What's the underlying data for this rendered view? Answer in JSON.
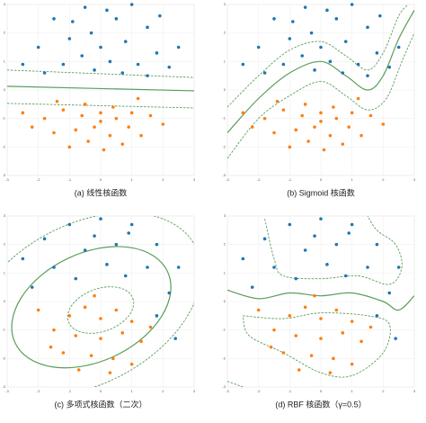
{
  "chart_data": [
    {
      "type": "scatter",
      "title": "(a) 线性核函数",
      "xlim": [
        -3,
        3
      ],
      "ylim": [
        -3,
        3
      ],
      "xticks": [
        -3,
        -2,
        -1,
        0,
        1,
        2,
        3
      ],
      "yticks": [
        -3,
        -2,
        -1,
        0,
        1,
        2,
        3
      ],
      "grid": true,
      "series": [
        {
          "color": "#1f77b4",
          "x": [
            -1.5,
            -0.5,
            1,
            1.5,
            -0.3,
            0.5,
            -2,
            -1,
            0,
            0.8,
            1.8,
            -2.5,
            -1.2,
            -0.6,
            0.3,
            1.2,
            2.2,
            -1.8,
            0.7,
            -0.2,
            1.5,
            2.5,
            -0.9,
            0.2,
            1.9
          ],
          "values": [
            2.5,
            2.9,
            3,
            2.2,
            2,
            2.5,
            1.5,
            1.8,
            1.5,
            1.7,
            1.3,
            0.9,
            0.9,
            1.2,
            1,
            0.9,
            0.8,
            0.6,
            0.6,
            0.7,
            0.5,
            1.5,
            2.4,
            2.8,
            2.6
          ]
        },
        {
          "color": "#ff7f0e",
          "x": [
            -2.5,
            -1.8,
            -1.2,
            -0.6,
            0,
            0.5,
            1,
            1.6,
            -1.5,
            -0.8,
            -0.2,
            0.3,
            0.9,
            1.3,
            -1,
            -0.4,
            0.1,
            0.7,
            -2.2,
            2,
            -0.5,
            0.4,
            -1.4,
            1.2,
            0
          ],
          "values": [
            -0.8,
            -1,
            -0.7,
            -0.9,
            -0.8,
            -1,
            -0.8,
            -0.9,
            -1.5,
            -1.4,
            -1.3,
            -1.6,
            -1.3,
            -1.6,
            -2,
            -1.8,
            -2.1,
            -1.9,
            -1.3,
            -1.2,
            -0.5,
            -0.6,
            -0.4,
            -0.3,
            -1.1
          ]
        }
      ],
      "curves": [
        {
          "type": "line",
          "color": "#5a9e5a",
          "style": "solid",
          "x": [
            -3,
            3
          ],
          "values": [
            0.13,
            -0.03
          ]
        },
        {
          "type": "line",
          "color": "#5a9e5a",
          "style": "dashed",
          "x": [
            -3,
            3
          ],
          "values": [
            0.7,
            0.44
          ]
        },
        {
          "type": "line",
          "color": "#5a9e5a",
          "style": "dashed",
          "x": [
            -3,
            3
          ],
          "values": [
            -0.47,
            -0.63
          ]
        }
      ]
    },
    {
      "type": "scatter",
      "title": "(b) Sigmoid 核函数",
      "xlim": [
        -3,
        3
      ],
      "ylim": [
        -3,
        3
      ],
      "xticks": [
        -3,
        -2,
        -1,
        0,
        1,
        2,
        3
      ],
      "yticks": [
        -3,
        -2,
        -1,
        0,
        1,
        2,
        3
      ],
      "grid": true,
      "series": [
        {
          "color": "#1f77b4",
          "x": [
            -1.5,
            -0.5,
            1,
            1.5,
            -0.3,
            0.5,
            -2,
            -1,
            0,
            0.8,
            1.8,
            -2.5,
            -1.2,
            -0.6,
            0.3,
            1.2,
            2.2,
            -1.8,
            0.7,
            -0.2,
            1.5,
            2.5,
            -0.9,
            0.2,
            1.9
          ],
          "values": [
            2.5,
            2.9,
            3,
            2.2,
            2,
            2.5,
            1.5,
            1.8,
            1.5,
            1.7,
            1.3,
            0.9,
            0.9,
            1.2,
            1,
            0.9,
            0.8,
            0.6,
            0.6,
            0.7,
            0.5,
            1.5,
            2.4,
            2.8,
            2.6
          ]
        },
        {
          "color": "#ff7f0e",
          "x": [
            -2.5,
            -1.8,
            -1.2,
            -0.6,
            0,
            0.5,
            1,
            1.6,
            -1.5,
            -0.8,
            -0.2,
            0.3,
            0.9,
            1.3,
            -1,
            -0.4,
            0.1,
            0.7,
            -2.2,
            2,
            -0.5,
            0.4,
            -1.4,
            1.2,
            0
          ],
          "values": [
            -0.8,
            -1,
            -0.7,
            -0.9,
            -0.8,
            -1,
            -0.8,
            -0.9,
            -1.5,
            -1.4,
            -1.3,
            -1.6,
            -1.3,
            -1.6,
            -2,
            -1.8,
            -2.1,
            -1.9,
            -1.3,
            -1.2,
            -0.5,
            -0.6,
            -0.4,
            -0.3,
            -1.1
          ]
        }
      ],
      "curves": [
        {
          "type": "line",
          "color": "#5a9e5a",
          "style": "solid",
          "x": [
            -3,
            -2,
            -1,
            0,
            0.8,
            1.5,
            2,
            2.5,
            3
          ],
          "values": [
            -1.5,
            -0.3,
            0.6,
            1,
            0.5,
            0,
            0.5,
            1.8,
            2.8
          ]
        },
        {
          "type": "line",
          "color": "#5a9e5a",
          "style": "dashed",
          "x": [
            -3,
            -2,
            -1,
            0,
            0.8,
            1.5,
            2,
            2.5,
            2.8
          ],
          "values": [
            -0.6,
            0.5,
            1.4,
            1.7,
            1.2,
            0.7,
            1.3,
            2.6,
            3
          ]
        },
        {
          "type": "line",
          "color": "#5a9e5a",
          "style": "dashed",
          "x": [
            -3,
            -2,
            -1,
            0,
            0.8,
            1.5,
            2.1,
            2.6,
            3
          ],
          "values": [
            -2.4,
            -1,
            -0.2,
            0.3,
            -0.2,
            -0.7,
            -0.3,
            1,
            2
          ]
        }
      ]
    },
    {
      "type": "scatter",
      "title": "(c) 多项式核函数（二次）",
      "xlim": [
        -3,
        3
      ],
      "ylim": [
        -3,
        3
      ],
      "xticks": [
        -3,
        -2,
        -1,
        0,
        1,
        2,
        3
      ],
      "yticks": [
        -3,
        -2,
        -1,
        0,
        1,
        2,
        3
      ],
      "grid": true,
      "series": [
        {
          "color": "#1f77b4",
          "x": [
            -2.5,
            -1.8,
            -1,
            0,
            1,
            1.8,
            2.5,
            -2.2,
            2.2,
            -0.5,
            0.5,
            1.5,
            -1.5,
            0.8,
            0.2,
            -0.8,
            1.8,
            2.4,
            0.9,
            -0.2
          ],
          "values": [
            1.5,
            2.2,
            2.7,
            2.9,
            2.7,
            2,
            1.2,
            0.5,
            0.3,
            1.8,
            2,
            1.2,
            1.2,
            0.9,
            1.3,
            0.8,
            -0.5,
            -1.3,
            2.4,
            2.3
          ]
        },
        {
          "color": "#ff7f0e",
          "x": [
            -1,
            -0.5,
            0,
            0.5,
            1,
            -1.5,
            -0.8,
            0,
            0.7,
            1.3,
            -1.2,
            -0.3,
            0.4,
            1,
            -2,
            -0.2,
            0.3,
            -0.7,
            1.6,
            -1.6
          ],
          "values": [
            -0.5,
            -0.2,
            -0.6,
            -0.3,
            -0.7,
            -1,
            -1.2,
            -1.3,
            -1.1,
            -1.4,
            -1.8,
            -1.9,
            -2,
            -2.2,
            -0.3,
            0.2,
            -2.5,
            -2.4,
            -0.9,
            -1.6
          ]
        }
      ],
      "curves": [
        {
          "type": "ellipse",
          "color": "#5a9e5a",
          "style": "dashed",
          "cx": 0,
          "cy": -0.3,
          "rx": 1.1,
          "ry": 0.75,
          "angle": 20
        },
        {
          "type": "ellipse",
          "color": "#5a9e5a",
          "style": "solid",
          "cx": -0.3,
          "cy": -0.2,
          "rx": 2.7,
          "ry": 1.9,
          "angle": 25
        },
        {
          "type": "ellipse",
          "color": "#5a9e5a",
          "style": "dashed",
          "cx": -0.5,
          "cy": -0.1,
          "rx": 4,
          "ry": 2.8,
          "angle": 28
        }
      ]
    },
    {
      "type": "scatter",
      "title": "(d) RBF 核函数（γ=0.5）",
      "xlim": [
        -3,
        3
      ],
      "ylim": [
        -3,
        3
      ],
      "xticks": [
        -3,
        -2,
        -1,
        0,
        1,
        2,
        3
      ],
      "yticks": [
        -3,
        -2,
        -1,
        0,
        1,
        2,
        3
      ],
      "grid": true,
      "series": [
        {
          "color": "#1f77b4",
          "x": [
            -2.5,
            -1.8,
            -1,
            0,
            1,
            1.8,
            2.5,
            -2.2,
            2.2,
            -0.5,
            0.5,
            1.5,
            -1.5,
            0.8,
            0.2,
            -0.8,
            1.8,
            2.4,
            0.9,
            -0.2
          ],
          "values": [
            1.5,
            2.2,
            2.7,
            2.9,
            2.7,
            2,
            1.2,
            0.5,
            0.3,
            1.8,
            2,
            1.2,
            1.2,
            0.9,
            1.3,
            0.8,
            -0.5,
            -1.3,
            2.4,
            2.3
          ]
        },
        {
          "color": "#ff7f0e",
          "x": [
            -1,
            -0.5,
            0,
            0.5,
            1,
            -1.5,
            -0.8,
            0,
            0.7,
            1.3,
            -1.2,
            -0.3,
            0.4,
            1,
            -2,
            -0.2,
            0.3,
            -0.7,
            1.6,
            -1.6
          ],
          "values": [
            -0.5,
            -0.2,
            -0.6,
            -0.3,
            -0.7,
            -1,
            -1.2,
            -1.3,
            -1.1,
            -1.4,
            -1.8,
            -1.9,
            -2,
            -2.2,
            -0.3,
            0.2,
            -2.5,
            -2.4,
            -0.9,
            -1.6
          ]
        }
      ],
      "curves": [
        {
          "type": "line",
          "color": "#5a9e5a",
          "style": "dashed",
          "x": [
            -1.8,
            -1.5,
            -1.2,
            0,
            1.2,
            2.2,
            2.6,
            2.4,
            1.8,
            1.5
          ],
          "values": [
            2.9,
            1.5,
            0.9,
            0.8,
            0.9,
            0.6,
            1.2,
            2,
            2.5,
            3
          ]
        },
        {
          "type": "line",
          "color": "#5a9e5a",
          "style": "solid",
          "x": [
            -3,
            -2,
            -1,
            0,
            1,
            2,
            2.5,
            3
          ],
          "values": [
            0.4,
            0.1,
            0.3,
            0.2,
            0.3,
            0,
            -0.3,
            0.2
          ]
        },
        {
          "type": "line",
          "color": "#5a9e5a",
          "style": "dashed",
          "x": [
            -2.5,
            -1.2,
            0,
            1.5,
            2.2,
            2,
            1,
            0,
            -1.2,
            -2.3,
            -2.5
          ],
          "values": [
            -0.5,
            -0.6,
            -0.4,
            -0.5,
            -0.8,
            -1.8,
            -2.6,
            -2.5,
            -1.8,
            -1.2,
            -0.5
          ]
        },
        {
          "type": "line",
          "color": "#5a9e5a",
          "style": "dashed",
          "x": [
            -3,
            -2.5
          ],
          "values": [
            -2.8,
            -3
          ]
        }
      ]
    }
  ]
}
